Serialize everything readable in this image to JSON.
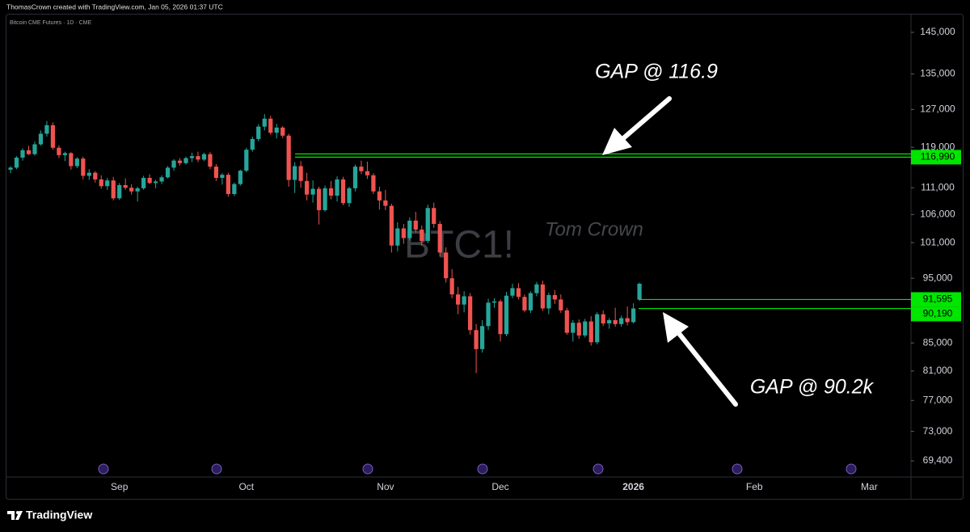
{
  "header": "ThomasCrown created with TradingView.com, Jan 05, 2026 01:37 UTC",
  "footer": "TradingView",
  "chart_data": {
    "type": "candlestick",
    "title": "Bitcoin CME Futures · 1D · CME",
    "watermark": "BTC1!",
    "author": "Tom Crown",
    "annotations": [
      "GAP @ 116.9",
      "GAP @ 90.2k"
    ],
    "log": true,
    "grid": false,
    "up_color": "#26a69a",
    "down_color": "#ef5350",
    "level_color": "#00e600",
    "ylim": [
      67500,
      149500
    ],
    "yticks": [
      {
        "value": 145000,
        "label": "145,000"
      },
      {
        "value": 135000,
        "label": "135,000"
      },
      {
        "value": 127000,
        "label": "127,000"
      },
      {
        "value": 119000,
        "label": "119,000"
      },
      {
        "value": 111000,
        "label": "111,000"
      },
      {
        "value": 106000,
        "label": "106,000"
      },
      {
        "value": 101000,
        "label": "101,000"
      },
      {
        "value": 95000,
        "label": "95,000"
      },
      {
        "value": 85000,
        "label": "85,000"
      },
      {
        "value": 81000,
        "label": "81,000"
      },
      {
        "value": 77000,
        "label": "77,000"
      },
      {
        "value": 73000,
        "label": "73,000"
      },
      {
        "value": 69400,
        "label": "69,400"
      }
    ],
    "levels": [
      {
        "value": 116990,
        "label": "116,990"
      },
      {
        "value": 91595,
        "label": "91,595"
      },
      {
        "value": 90190,
        "label": "90,190"
      }
    ],
    "categories": [
      null,
      null,
      null,
      null,
      null,
      null,
      null,
      null,
      null,
      null,
      null,
      null,
      null,
      null,
      null,
      null,
      null,
      null,
      "Sep",
      null,
      null,
      null,
      null,
      null,
      null,
      null,
      null,
      null,
      null,
      null,
      null,
      null,
      null,
      null,
      null,
      null,
      null,
      null,
      null,
      "Oct",
      null,
      null,
      null,
      null,
      null,
      null,
      null,
      null,
      null,
      null,
      null,
      null,
      null,
      null,
      null,
      null,
      null,
      null,
      null,
      null,
      null,
      null,
      "Nov",
      null,
      null,
      null,
      null,
      null,
      null,
      null,
      null,
      null,
      null,
      null,
      null,
      null,
      null,
      null,
      null,
      null,
      null,
      "Dec",
      null,
      null,
      null,
      null,
      null,
      null,
      null,
      null,
      null,
      null,
      null,
      null,
      null,
      null,
      null,
      null,
      null,
      null,
      null,
      null,
      null,
      "2026",
      null,
      null,
      null,
      null,
      null,
      null,
      null,
      null,
      null,
      null,
      null,
      null,
      null,
      null,
      null,
      null,
      null,
      null,
      null,
      "Feb",
      null,
      null,
      null,
      null,
      null,
      null,
      null,
      null,
      null,
      null,
      null,
      null,
      null,
      null,
      null,
      null,
      null,
      null,
      "Mar",
      null,
      null,
      null,
      null,
      null,
      null
    ],
    "open": [
      114500,
      114900,
      116900,
      118400,
      117600,
      119600,
      121800,
      123600,
      118900,
      117400,
      117800,
      115200,
      116700,
      113300,
      113900,
      112600,
      111300,
      112400,
      109000,
      111500,
      111000,
      110300,
      110900,
      112900,
      111900,
      112200,
      113000,
      114900,
      116300,
      115800,
      116800,
      117200,
      116500,
      117600,
      115100,
      112900,
      113500,
      109800,
      111700,
      114300,
      118500,
      120700,
      123300,
      125000,
      122000,
      123100,
      121400,
      112500,
      115200,
      112300,
      109700,
      110800,
      106800,
      110900,
      109500,
      112600,
      108100,
      110900,
      115100,
      114200,
      113400,
      110300,
      108600,
      107600,
      100500,
      103500,
      101800,
      104900,
      103300,
      101300,
      107200,
      104300,
      99300,
      95000,
      92400,
      90800,
      92100,
      86900,
      84100,
      87500,
      91100,
      91300,
      86300,
      92200,
      93400,
      92000,
      89900,
      92600,
      94000,
      90200,
      92300,
      91600,
      89900,
      86500,
      88000,
      86100,
      88200,
      85100,
      89300,
      87900,
      88400,
      87800,
      88700,
      88100,
      91595,
      null,
      null,
      null,
      null,
      null,
      null,
      null,
      null,
      null,
      null,
      null,
      null,
      null,
      null,
      null,
      null,
      null,
      null,
      null,
      null,
      null,
      null,
      null,
      null,
      null,
      null,
      null,
      null,
      null,
      null,
      null,
      null,
      null,
      null,
      null,
      null,
      null,
      null,
      null,
      null,
      null,
      null,
      null,
      null
    ],
    "high": [
      115200,
      117200,
      118800,
      119300,
      120200,
      122500,
      124500,
      124200,
      119400,
      118100,
      118000,
      117000,
      117100,
      114600,
      114200,
      113400,
      112900,
      113100,
      111900,
      112800,
      111700,
      111200,
      113300,
      113600,
      112500,
      113400,
      115200,
      116600,
      116800,
      117100,
      117900,
      118100,
      117900,
      118000,
      115600,
      113800,
      113900,
      112000,
      114500,
      118900,
      121200,
      123800,
      126000,
      125600,
      123900,
      123400,
      121800,
      116000,
      116200,
      113900,
      112400,
      111200,
      111400,
      112300,
      113200,
      113100,
      111200,
      115500,
      116300,
      116100,
      113800,
      111200,
      110600,
      108000,
      104600,
      104300,
      105500,
      106500,
      104000,
      107800,
      108200,
      104800,
      100200,
      96500,
      93600,
      92900,
      92600,
      87800,
      88400,
      91700,
      91800,
      91600,
      92800,
      94100,
      94200,
      92400,
      92900,
      94400,
      94600,
      92700,
      93100,
      92400,
      90300,
      88400,
      88500,
      88600,
      89000,
      89600,
      89900,
      88700,
      90300,
      89100,
      90500,
      91000,
      94300,
      null,
      null,
      null,
      null,
      null,
      null,
      null,
      null,
      null,
      null,
      null,
      null,
      null,
      null,
      null,
      null,
      null,
      null,
      null,
      null,
      null,
      null,
      null,
      null,
      null,
      null,
      null,
      null,
      null,
      null,
      null,
      null,
      null,
      null,
      null,
      null,
      null,
      null,
      null,
      null,
      null,
      null,
      null,
      null
    ],
    "low": [
      113800,
      114600,
      116300,
      117400,
      117300,
      119300,
      121200,
      118500,
      116800,
      116200,
      114500,
      114800,
      112600,
      112500,
      112000,
      110800,
      110600,
      108600,
      108700,
      110600,
      109700,
      108400,
      110600,
      111700,
      110900,
      111700,
      112800,
      114300,
      115300,
      115500,
      116000,
      116000,
      116200,
      114600,
      112300,
      111600,
      109300,
      109400,
      111400,
      114000,
      118100,
      120200,
      122500,
      121600,
      120800,
      120900,
      111200,
      110000,
      111000,
      108600,
      108200,
      104200,
      106500,
      108800,
      108400,
      107700,
      107400,
      110300,
      113600,
      112700,
      109800,
      106900,
      106800,
      99300,
      99500,
      100800,
      101400,
      102800,
      100500,
      100900,
      103600,
      98600,
      94300,
      91800,
      89300,
      89600,
      86200,
      80700,
      83600,
      86900,
      90300,
      85200,
      86000,
      91800,
      91600,
      89600,
      89500,
      92100,
      89800,
      89300,
      90900,
      89500,
      86200,
      85200,
      85600,
      85800,
      84600,
      84800,
      87500,
      87100,
      87400,
      87400,
      87600,
      87900,
      91400,
      null,
      null,
      null,
      null,
      null,
      null,
      null,
      null,
      null,
      null,
      null,
      null,
      null,
      null,
      null,
      null,
      null,
      null,
      null,
      null,
      null,
      null,
      null,
      null,
      null,
      null,
      null,
      null,
      null,
      null,
      null,
      null,
      null,
      null,
      null,
      null,
      null,
      null,
      null,
      null,
      null,
      null,
      null,
      null
    ],
    "close": [
      114900,
      116900,
      118400,
      117600,
      119600,
      121800,
      123600,
      118900,
      117400,
      117800,
      115200,
      116700,
      113300,
      113900,
      112600,
      111300,
      112400,
      109000,
      111500,
      111000,
      110300,
      110900,
      112900,
      111900,
      112200,
      113000,
      114900,
      116300,
      115800,
      116800,
      117200,
      116500,
      117600,
      115100,
      112900,
      113500,
      109800,
      111700,
      114300,
      118500,
      120700,
      123300,
      125000,
      122000,
      123100,
      121400,
      112500,
      115200,
      112300,
      109700,
      110800,
      106800,
      110900,
      109500,
      112600,
      108100,
      110900,
      115100,
      114200,
      113400,
      110300,
      108600,
      107600,
      100500,
      103500,
      101800,
      104900,
      103300,
      101300,
      107200,
      104300,
      99300,
      95000,
      92400,
      90800,
      92100,
      86900,
      84100,
      87500,
      91100,
      91300,
      86300,
      92200,
      93400,
      92000,
      89900,
      92600,
      94000,
      90200,
      92300,
      91600,
      89900,
      86500,
      88000,
      86100,
      88200,
      85100,
      89300,
      87900,
      88400,
      87800,
      88700,
      88100,
      90190,
      94100,
      null,
      null,
      null,
      null,
      null,
      null,
      null,
      null,
      null,
      null,
      null,
      null,
      null,
      null,
      null,
      null,
      null,
      null,
      null,
      null,
      null,
      null,
      null,
      null,
      null,
      null,
      null,
      null,
      null,
      null,
      null,
      null,
      null,
      null,
      null,
      null,
      null,
      null,
      null,
      null,
      null,
      null,
      null,
      null
    ]
  }
}
